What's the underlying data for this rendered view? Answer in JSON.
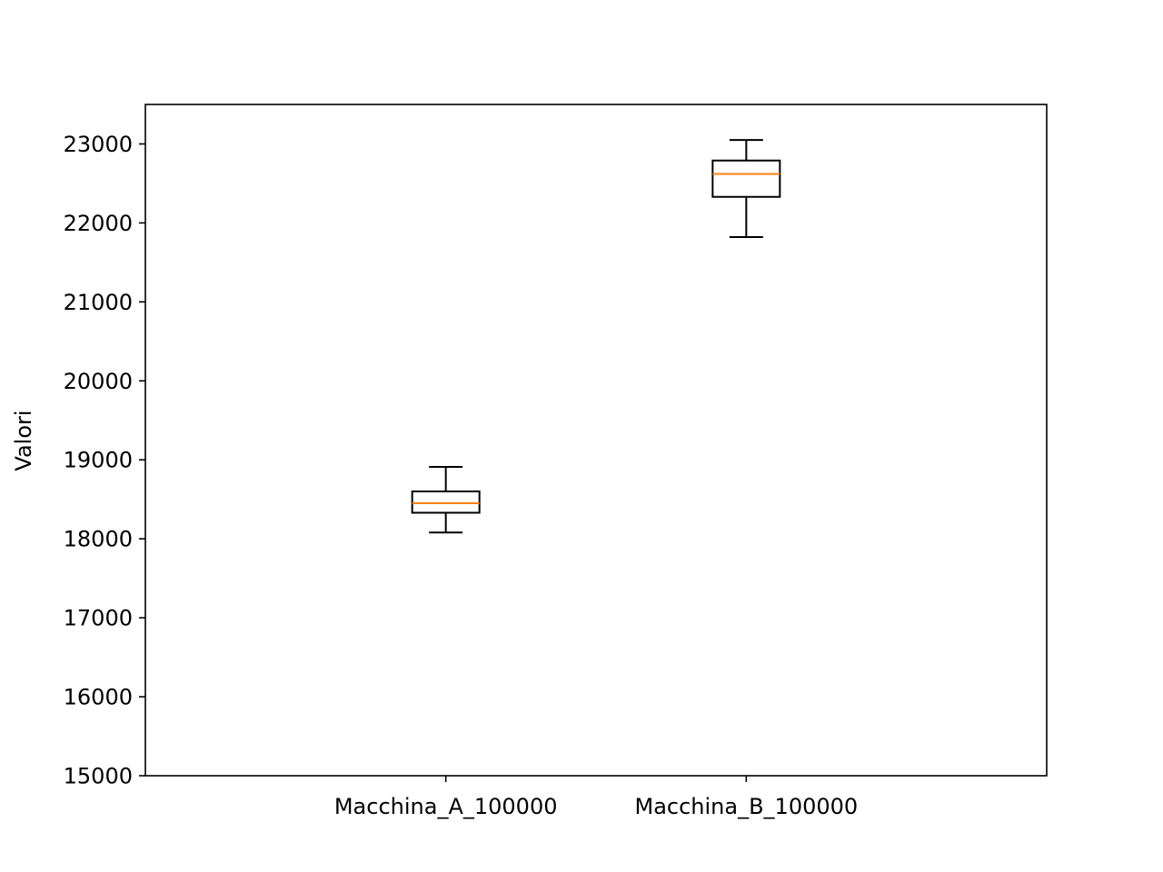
{
  "chart_data": {
    "type": "boxplot",
    "title": "",
    "xlabel": "",
    "ylabel": "Valori",
    "ylim": [
      15000,
      23500
    ],
    "yticks": [
      "15000",
      "16000",
      "17000",
      "18000",
      "19000",
      "20000",
      "21000",
      "22000",
      "23000"
    ],
    "grid": false,
    "legend": "none",
    "categories": [
      "Macchina_A_100000",
      "Macchina_B_100000"
    ],
    "boxes": [
      {
        "category": "Macchina_A_100000",
        "whisker_low": 18080,
        "q1": 18330,
        "median": 18450,
        "q3": 18600,
        "whisker_high": 18910
      },
      {
        "category": "Macchina_B_100000",
        "whisker_low": 21820,
        "q1": 22330,
        "median": 22620,
        "q3": 22790,
        "whisker_high": 23050
      }
    ],
    "colors": {
      "box": "#000000",
      "median": "#ff7f0e"
    }
  }
}
